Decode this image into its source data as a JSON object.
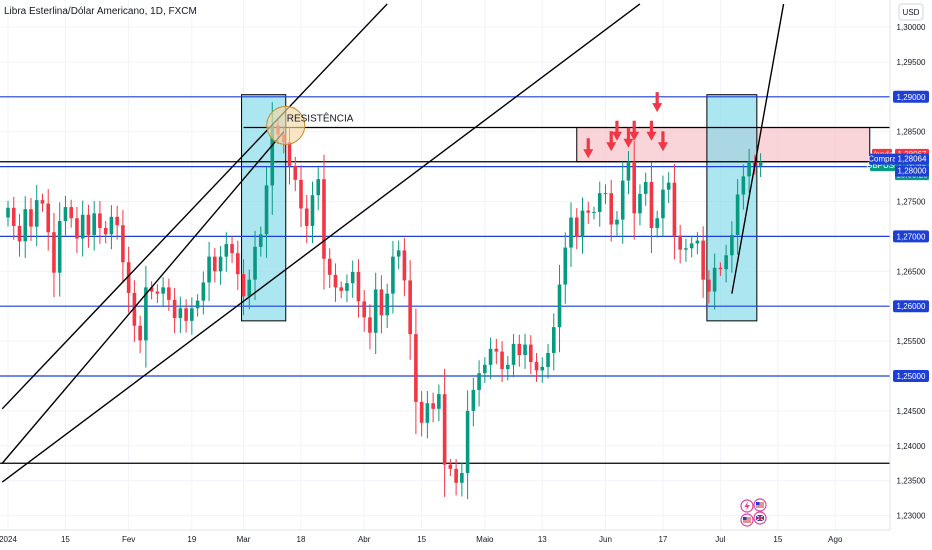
{
  "header": {
    "symbol_title": "Libra Esterlina/Dólar Americano, 1D, FXCM",
    "currency_button": "USD"
  },
  "annotation": {
    "resistance_label": "RESISTÊNCIA"
  },
  "price_badges": {
    "venda_label": "Venda",
    "venda_value": "1,28067",
    "symbol_label": "GBPUSD",
    "last_value": "1,28065",
    "countdown": "15:05:28",
    "compra_label": "Compra",
    "compra_value": "1,28064",
    "level_1_28": "1,28000"
  },
  "colors": {
    "up": "#089981",
    "down": "#f23645",
    "horizontal_line": "#1e3fd6",
    "highlight_box": "#7fd8e8",
    "resistance_zone": "#f7c6cb",
    "arrow": "#f23645",
    "circle": "#f5d9a6",
    "badge_blue": "#1e3fd6",
    "badge_red": "#f23645",
    "badge_green": "#089981"
  },
  "icons": [
    "lightning-icon",
    "us-flag-icon",
    "uk-flag-icon"
  ],
  "chart_data": {
    "type": "candlestick",
    "title": "Libra Esterlina/Dólar Americano, 1D, FXCM",
    "symbol": "GBPUSD",
    "timeframe": "1D",
    "y_axis": {
      "side": "right",
      "ticks": [
        "1,30000",
        "1,29500",
        "1,29000",
        "1,28500",
        "1,28000",
        "1,27500",
        "1,27000",
        "1,26500",
        "1,26000",
        "1,25500",
        "1,25000",
        "1,24500",
        "1,24000",
        "1,23500",
        "1,23000"
      ],
      "ylim": [
        1.2295,
        1.3012
      ]
    },
    "x_axis": {
      "ticks": [
        "2024",
        "15",
        "Fev",
        "19",
        "Mar",
        "18",
        "Abr",
        "15",
        "Maio",
        "13",
        "Jun",
        "17",
        "Jul",
        "15",
        "Ago"
      ],
      "tick_index": [
        0,
        10,
        21,
        32,
        41,
        51,
        62,
        72,
        83,
        93,
        104,
        114,
        124,
        134,
        144
      ]
    },
    "horizontal_levels": [
      {
        "price": 1.29,
        "label": "1,29000",
        "color": "blue"
      },
      {
        "price": 1.28,
        "label": "1,28000",
        "color": "blue"
      },
      {
        "price": 1.27,
        "label": "1,27000",
        "color": "blue"
      },
      {
        "price": 1.26,
        "label": "1,26000",
        "color": "blue"
      },
      {
        "price": 1.25,
        "label": "1,25000",
        "color": "blue"
      },
      {
        "price": 1.2856,
        "color": "black"
      },
      {
        "price": 1.2375,
        "color": "black"
      }
    ],
    "resistance_zone": {
      "from_index": 99,
      "to_index": 150,
      "price_low": 1.2807,
      "price_high": 1.2856
    },
    "highlight_boxes": [
      {
        "from_index": 41,
        "to_index": 48,
        "price_low": 1.2579,
        "price_high": 1.2903
      },
      {
        "from_index": 122,
        "to_index": 130,
        "price_low": 1.2579,
        "price_high": 1.2903
      }
    ],
    "resistance_circle": {
      "index": 48,
      "price": 1.2859
    },
    "down_arrows": [
      {
        "index": 101,
        "price": 1.2812
      },
      {
        "index": 105,
        "price": 1.2822
      },
      {
        "index": 106,
        "price": 1.2837
      },
      {
        "index": 108,
        "price": 1.2827
      },
      {
        "index": 109,
        "price": 1.2837
      },
      {
        "index": 112,
        "price": 1.2837
      },
      {
        "index": 113,
        "price": 1.2878
      },
      {
        "index": 114,
        "price": 1.2822
      }
    ],
    "trend_lines": [
      {
        "p1": {
          "index": -1,
          "price": 1.2453
        },
        "p2": {
          "index": 66,
          "price": 1.3033
        }
      },
      {
        "p1": {
          "index": -1,
          "price": 1.2348
        },
        "p2": {
          "index": 110,
          "price": 1.3033
        }
      },
      {
        "p1": {
          "index": -1,
          "price": 1.2375
        },
        "p2": {
          "index": 48,
          "price": 1.285
        }
      },
      {
        "p1": {
          "index": 126,
          "price": 1.2618
        },
        "p2": {
          "index": 135,
          "price": 1.3033
        }
      }
    ],
    "price_labels": {
      "venda": 1.28067,
      "last": 1.28065,
      "compra": 1.28064
    },
    "start_price": 1.2727,
    "closes": [
      1.2741,
      1.2715,
      1.2693,
      1.2739,
      1.2714,
      1.2752,
      1.2747,
      1.2706,
      1.2648,
      1.2722,
      1.2742,
      1.2726,
      1.2697,
      1.2731,
      1.2702,
      1.2733,
      1.2712,
      1.2703,
      1.2728,
      1.2716,
      1.2663,
      1.2619,
      1.2572,
      1.2551,
      1.2627,
      1.2621,
      1.2618,
      1.2627,
      1.2609,
      1.2583,
      1.2597,
      1.2579,
      1.2597,
      1.2608,
      1.2634,
      1.2671,
      1.265,
      1.2671,
      1.2689,
      1.2676,
      1.2646,
      1.2614,
      1.2638,
      1.2685,
      1.2703,
      1.2773,
      1.2859,
      1.2846,
      1.2835,
      1.2801,
      1.2781,
      1.274,
      1.2715,
      1.2759,
      1.2782,
      1.2668,
      1.2645,
      1.2627,
      1.2622,
      1.2633,
      1.2649,
      1.2607,
      1.2584,
      1.2562,
      1.2624,
      1.2587,
      1.2618,
      1.2671,
      1.268,
      1.2637,
      1.256,
      1.2463,
      1.2433,
      1.2461,
      1.2453,
      1.2474,
      1.2373,
      1.2367,
      1.2347,
      1.2361,
      1.245,
      1.248,
      1.2504,
      1.2516,
      1.2539,
      1.2535,
      1.251,
      1.2516,
      1.2546,
      1.253,
      1.2545,
      1.252,
      1.2508,
      1.2513,
      1.2533,
      1.257,
      1.2631,
      1.2684,
      1.2727,
      1.2699,
      1.2737,
      1.2734,
      1.2735,
      1.2762,
      1.2762,
      1.2717,
      1.2724,
      1.278,
      1.2807,
      1.2733,
      1.2761,
      1.2778,
      1.2712,
      1.2726,
      1.2767,
      1.2777,
      1.2701,
      1.2681,
      1.2683,
      1.269,
      1.2694,
      1.2638,
      1.2621,
      1.2655,
      1.2653,
      1.2673,
      1.2702,
      1.276,
      1.2786,
      1.2807,
      1.2801,
      1.28065
    ]
  }
}
